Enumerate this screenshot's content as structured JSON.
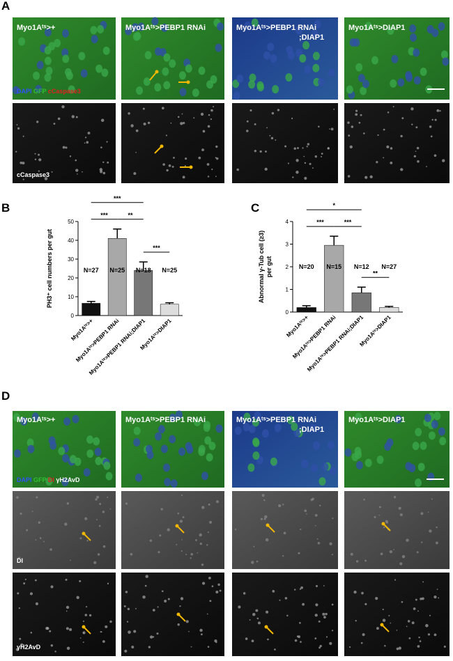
{
  "panel_labels": [
    "A",
    "B",
    "C",
    "D"
  ],
  "panel_a": {
    "columns": [
      [
        "Myo1Aᵗˢ>+"
      ],
      [
        "Myo1Aᵗˢ>PEBP1 RNAi"
      ],
      [
        "Myo1Aᵗˢ>PEBP1 RNAi",
        ";DIAP1"
      ],
      [
        "Myo1Aᵗˢ>DIAP1"
      ]
    ],
    "stain_top": [
      {
        "text": "DAPI",
        "color": "#3050ff"
      },
      {
        "text": "GFP",
        "color": "#30c030"
      },
      {
        "text": "cCaspase3",
        "color": "#e02020"
      }
    ],
    "stain_bottom": "cCaspase3"
  },
  "chart_data": [
    {
      "type": "bar",
      "ylabel": [
        "PH3⁺ cell numbers per gut"
      ],
      "categories": [
        "Myo1Aᵗˢ>+",
        "Myo1Aᵗˢ>PEBP1 RNAi",
        "Myo1Aᵗˢ>PEBP1 RNAi;DIAP1",
        "Myo1Aᵗˢ>DIAP1"
      ],
      "values": [
        6.5,
        41,
        24,
        6
      ],
      "errors": [
        1,
        5,
        4.5,
        0.8
      ],
      "colors": [
        "#111111",
        "#a8a8a8",
        "#777777",
        "#dddddd"
      ],
      "n_labels": [
        "N=27",
        "N=25",
        "N=18",
        "N=25"
      ],
      "brackets": [
        {
          "from": 0,
          "to": 1,
          "label": "***"
        },
        {
          "from": 1,
          "to": 2,
          "label": "**"
        },
        {
          "from": 0,
          "to": 2,
          "label": "***"
        },
        {
          "from": 2,
          "to": 3,
          "label": "***"
        }
      ],
      "ylim": [
        0,
        50
      ],
      "yticks": [
        0,
        10,
        20,
        30,
        40,
        50
      ]
    },
    {
      "type": "bar",
      "ylabel": [
        "Abnormal γ-Tub cell (≥3)",
        "per gut"
      ],
      "categories": [
        "Myo1Aᵗˢ>+",
        "Myo1Aᵗˢ>PEBP1 RNAi",
        "Myo1Aᵗˢ>PEBP1 RNAi;DIAP1",
        "Myo1Aᵗˢ>DIAP1"
      ],
      "values": [
        0.2,
        2.95,
        0.85,
        0.2
      ],
      "errors": [
        0.08,
        0.4,
        0.25,
        0.05
      ],
      "colors": [
        "#111111",
        "#a8a8a8",
        "#777777",
        "#dddddd"
      ],
      "n_labels": [
        "N=20",
        "N=15",
        "N=12",
        "N=27"
      ],
      "brackets": [
        {
          "from": 0,
          "to": 1,
          "label": "***"
        },
        {
          "from": 1,
          "to": 2,
          "label": "***"
        },
        {
          "from": 0,
          "to": 2,
          "label": "*"
        },
        {
          "from": 2,
          "to": 3,
          "label": "**"
        }
      ],
      "ylim": [
        0,
        4
      ],
      "yticks": [
        0,
        1,
        2,
        3,
        4
      ]
    }
  ],
  "panel_d": {
    "columns": [
      [
        "Myo1Aᵗˢ>+"
      ],
      [
        "Myo1Aᵗˢ>PEBP1 RNAi"
      ],
      [
        "Myo1Aᵗˢ>PEBP1 RNAi",
        ";DIAP1"
      ],
      [
        "Myo1Aᵗˢ>DIAP1"
      ]
    ],
    "stain_top": [
      {
        "text": "DAPI",
        "color": "#3050ff"
      },
      {
        "text": "GFP",
        "color": "#30c030"
      },
      {
        "text": "Dl",
        "color": "#e02020"
      },
      {
        "text": "γH2AvD",
        "color": "#ffffff"
      }
    ],
    "stain_mid": "Dl",
    "stain_bottom": "γH2AvD"
  }
}
